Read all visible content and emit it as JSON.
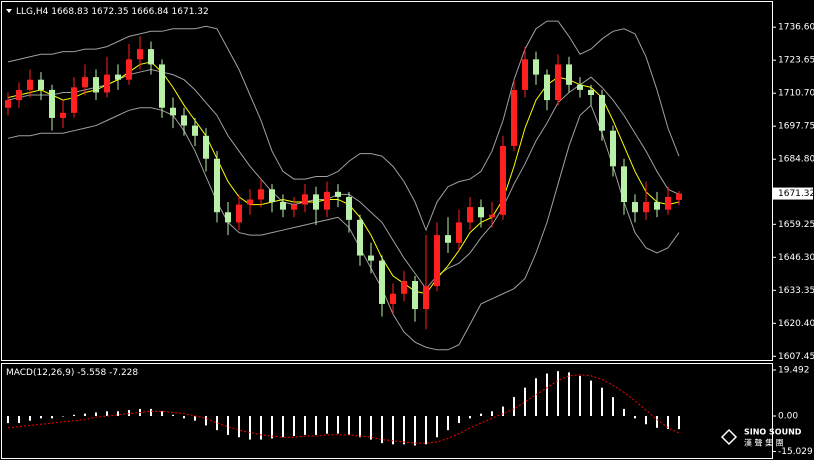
{
  "chart_data": [
    {
      "type": "candlestick",
      "title": "LLG,H4",
      "up_color": "#ff2020",
      "down_color": "#b8f0a8",
      "open": [
        1705,
        1708,
        1712,
        1716,
        1712,
        1701,
        1703,
        1713,
        1717,
        1711,
        1718,
        1716,
        1724,
        1728,
        1722,
        1705,
        1702,
        1698,
        1694,
        1685,
        1664,
        1660,
        1667,
        1669,
        1673,
        1668,
        1665,
        1667,
        1671,
        1665,
        1672,
        1670,
        1661,
        1647,
        1645,
        1628,
        1632,
        1637,
        1626,
        1635,
        1655,
        1652,
        1660,
        1666,
        1662,
        1663,
        1690,
        1712,
        1724,
        1718,
        1708,
        1722,
        1714,
        1712,
        1710,
        1696,
        1682,
        1668,
        1664,
        1668,
        1665,
        1668.83
      ],
      "high": [
        1711,
        1715,
        1720,
        1719,
        1714,
        1708,
        1717,
        1722,
        1720,
        1725,
        1722,
        1730,
        1733,
        1731,
        1724,
        1709,
        1705,
        1701,
        1697,
        1688,
        1668,
        1671,
        1673,
        1677,
        1675,
        1671,
        1670,
        1675,
        1674,
        1676,
        1675,
        1672,
        1663,
        1652,
        1647,
        1636,
        1641,
        1639,
        1655,
        1660,
        1662,
        1665,
        1670,
        1669,
        1668,
        1694,
        1716,
        1729,
        1727,
        1720,
        1726,
        1725,
        1717,
        1714,
        1712,
        1698,
        1685,
        1671,
        1676,
        1672,
        1674,
        1672.35
      ],
      "low": [
        1702,
        1705,
        1709,
        1708,
        1696,
        1697,
        1701,
        1710,
        1708,
        1709,
        1712,
        1714,
        1720,
        1718,
        1701,
        1697,
        1694,
        1690,
        1680,
        1660,
        1655,
        1657,
        1663,
        1666,
        1664,
        1662,
        1662,
        1664,
        1659,
        1662,
        1666,
        1656,
        1643,
        1640,
        1623,
        1624,
        1629,
        1621,
        1618,
        1633,
        1648,
        1649,
        1657,
        1658,
        1658,
        1661,
        1688,
        1709,
        1714,
        1704,
        1706,
        1711,
        1709,
        1706,
        1692,
        1678,
        1663,
        1660,
        1661,
        1662,
        1663,
        1666.84
      ],
      "close": [
        1708,
        1712,
        1716,
        1712,
        1701,
        1703,
        1713,
        1717,
        1711,
        1718,
        1716,
        1724,
        1728,
        1722,
        1705,
        1702,
        1698,
        1694,
        1685,
        1664,
        1660,
        1667,
        1669,
        1673,
        1668,
        1665,
        1667,
        1671,
        1665,
        1672,
        1670,
        1661,
        1647,
        1645,
        1628,
        1632,
        1637,
        1626,
        1635,
        1655,
        1652,
        1660,
        1666,
        1662,
        1663,
        1690,
        1712,
        1724,
        1718,
        1708,
        1722,
        1714,
        1712,
        1710,
        1696,
        1682,
        1668,
        1664,
        1668,
        1665,
        1670,
        1671.32
      ],
      "overlays": [
        {
          "color": "#a0a0a0",
          "values": [
            1723,
            1724,
            1725,
            1726,
            1726,
            1727,
            1727,
            1728,
            1728,
            1729,
            1731,
            1733,
            1734,
            1735,
            1735,
            1736,
            1736,
            1736,
            1737,
            1736,
            1728,
            1720,
            1710,
            1700,
            1688,
            1680,
            1677,
            1677,
            1678,
            1678,
            1680,
            1684,
            1687,
            1687,
            1686,
            1682,
            1676,
            1668,
            1657,
            1668,
            1674,
            1676,
            1677,
            1680,
            1688,
            1700,
            1716,
            1728,
            1736,
            1739,
            1739,
            1733,
            1726,
            1728,
            1732,
            1735,
            1736,
            1734,
            1725,
            1712,
            1697,
            1686
          ]
        },
        {
          "color": "#a0a0a0",
          "values": [
            1708,
            1709,
            1710,
            1710,
            1710,
            1711,
            1711,
            1712,
            1713,
            1714,
            1716,
            1718,
            1719,
            1720,
            1719,
            1718,
            1716,
            1712,
            1707,
            1702,
            1694,
            1688,
            1682,
            1677,
            1672,
            1668,
            1667,
            1668,
            1669,
            1669,
            1671,
            1671,
            1668,
            1664,
            1660,
            1653,
            1646,
            1640,
            1634,
            1639,
            1642,
            1644,
            1648,
            1654,
            1659,
            1666,
            1675,
            1683,
            1692,
            1699,
            1707,
            1711,
            1714,
            1717,
            1713,
            1708,
            1702,
            1695,
            1688,
            1680,
            1673,
            1671
          ]
        },
        {
          "color": "#a0a0a0",
          "values": [
            1693,
            1694,
            1694,
            1695,
            1695,
            1695,
            1696,
            1697,
            1698,
            1700,
            1702,
            1704,
            1705,
            1705,
            1704,
            1702,
            1696,
            1688,
            1678,
            1668,
            1660,
            1656,
            1655,
            1655,
            1656,
            1657,
            1658,
            1659,
            1660,
            1661,
            1662,
            1658,
            1650,
            1642,
            1634,
            1624,
            1617,
            1613,
            1611,
            1610,
            1610,
            1612,
            1620,
            1628,
            1630,
            1632,
            1634,
            1638,
            1648,
            1660,
            1675,
            1690,
            1702,
            1706,
            1695,
            1682,
            1668,
            1656,
            1650,
            1648,
            1650,
            1656
          ]
        },
        {
          "color": "#ffff00",
          "values": [
            1709,
            1710,
            1711,
            1712,
            1710,
            1708,
            1709,
            1711,
            1712,
            1714,
            1716,
            1719,
            1722,
            1723,
            1719,
            1713,
            1706,
            1700,
            1694,
            1685,
            1676,
            1670,
            1667,
            1667,
            1668,
            1669,
            1668,
            1668,
            1668,
            1669,
            1669,
            1667,
            1662,
            1655,
            1646,
            1639,
            1636,
            1633,
            1632,
            1638,
            1643,
            1649,
            1656,
            1660,
            1662,
            1669,
            1682,
            1697,
            1708,
            1714,
            1717,
            1716,
            1714,
            1713,
            1709,
            1700,
            1690,
            1680,
            1672,
            1668,
            1667,
            1668
          ]
        }
      ],
      "ylim": [
        1606.0,
        1746.5
      ],
      "yticks": [
        {
          "value": 1736.6,
          "label": "1736.60"
        },
        1723.65,
        {
          "value": 1710.7,
          "label": "1710.70"
        },
        1697.75,
        {
          "value": 1684.8,
          "label": "1684.80"
        },
        1659.25,
        {
          "value": 1646.3,
          "label": "1646.30"
        },
        1633.35,
        {
          "value": 1620.4,
          "label": "1620.40"
        },
        1607.45
      ]
    },
    {
      "type": "macd",
      "title": "MACD(12,26,9)",
      "histogram": {
        "color": "#ffffff",
        "values": [
          -3,
          -3,
          -2,
          -1,
          -1,
          0,
          0.5,
          1,
          1.5,
          2,
          2,
          2.5,
          3,
          3,
          2,
          0.5,
          -1,
          -2,
          -4,
          -6,
          -8,
          -9,
          -10,
          -10,
          -9.5,
          -9,
          -8.5,
          -8,
          -8,
          -7.5,
          -7.5,
          -8,
          -9,
          -10,
          -11.5,
          -12,
          -12,
          -12.5,
          -12,
          -9,
          -6,
          -3,
          -1,
          1,
          2,
          4,
          8,
          12,
          16,
          18,
          19,
          18.5,
          17,
          15,
          12,
          8,
          3,
          -1,
          -3.5,
          -5,
          -5.5,
          -5.558
        ]
      },
      "signal": {
        "color": "#ff0000",
        "values": [
          -5,
          -4.5,
          -4,
          -3.5,
          -3,
          -2.5,
          -2,
          -1.5,
          -0.5,
          0,
          0.5,
          1,
          1.5,
          2,
          2,
          1.5,
          1,
          0,
          -1,
          -3,
          -4.5,
          -6,
          -7,
          -8,
          -8.5,
          -9,
          -9,
          -8.5,
          -8.5,
          -8,
          -8,
          -8,
          -8.5,
          -9,
          -10,
          -10.5,
          -11,
          -11.5,
          -11.5,
          -11,
          -9.5,
          -7.5,
          -5,
          -3,
          -1,
          1,
          3,
          6,
          9,
          12,
          15,
          17,
          17.5,
          17,
          15.5,
          13,
          10,
          6.5,
          2.5,
          -1.5,
          -5,
          -7.228
        ]
      },
      "ylim": [
        -17.8,
        22.03
      ],
      "yticks": [
        19.492,
        {
          "value": 0,
          "label": "0.00"
        },
        -15.029
      ]
    }
  ],
  "logo": {
    "name": "SINO SOUND",
    "subtitle": "漢 聲 集 團"
  }
}
